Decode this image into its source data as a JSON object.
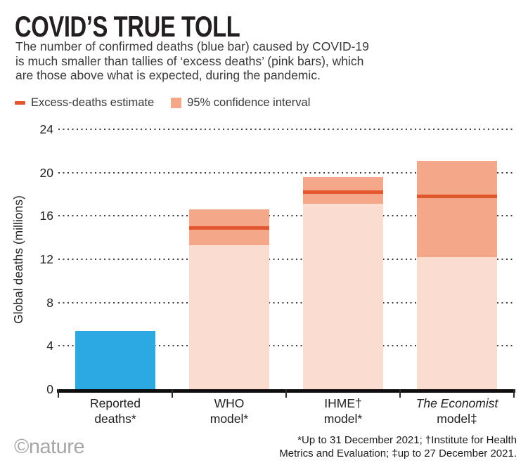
{
  "header": {
    "title": "COVID’S TRUE TOLL",
    "subtitle_lines": [
      "The number of confirmed deaths (blue bar) caused by COVID-19",
      "is much smaller than tallies of ‘excess deaths’ (pink bars), which",
      "are those above what is expected, during the pandemic."
    ]
  },
  "colors": {
    "reported_bar": "#2da9e1",
    "excess_bar_body": "#fadcd0",
    "confidence_band": "#f5a78a",
    "estimate_line": "#e2572b",
    "axis": "#0d0d0d",
    "grid_dots": "#3c3c3c"
  },
  "chart_data": {
    "type": "bar",
    "title": "COVID'S TRUE TOLL",
    "xlabel": "",
    "ylabel": "Global deaths (millions)",
    "ylim": [
      0,
      24
    ],
    "yticks": [
      0,
      4,
      8,
      12,
      16,
      20,
      24
    ],
    "grid": "horizontal dotted lines at each y tick, none at 0",
    "legend_position": "top-left above plot",
    "legend": [
      {
        "label": "Excess-deaths estimate",
        "swatch": "dash",
        "color": "#e2572b"
      },
      {
        "label": "95% confidence interval",
        "swatch": "square",
        "color": "#f5a78a"
      }
    ],
    "categories": [
      "Reported deaths*",
      "WHO model*",
      "IHME† model*",
      "The Economist model‡"
    ],
    "bars": [
      {
        "label_lines": [
          "Reported",
          "deaths*"
        ],
        "kind": "reported",
        "value": 5.4,
        "color": "#2da9e1",
        "italic_line": -1
      },
      {
        "label_lines": [
          "WHO",
          "model*"
        ],
        "kind": "excess",
        "estimate": 14.9,
        "ci_low": 13.3,
        "ci_high": 16.6,
        "italic_line": -1
      },
      {
        "label_lines": [
          "IHME†",
          "model*"
        ],
        "kind": "excess",
        "estimate": 18.2,
        "ci_low": 17.1,
        "ci_high": 19.6,
        "italic_line": -1
      },
      {
        "label_lines": [
          "The Economist",
          "model‡"
        ],
        "kind": "excess",
        "estimate": 17.8,
        "ci_low": 12.2,
        "ci_high": 21.1,
        "italic_line": 0
      }
    ]
  },
  "footer": {
    "logo": "©nature",
    "footnote_lines": [
      "*Up to 31 December 2021; †Institute for Health",
      "Metrics and Evaluation; ‡up to 27 December 2021."
    ]
  }
}
